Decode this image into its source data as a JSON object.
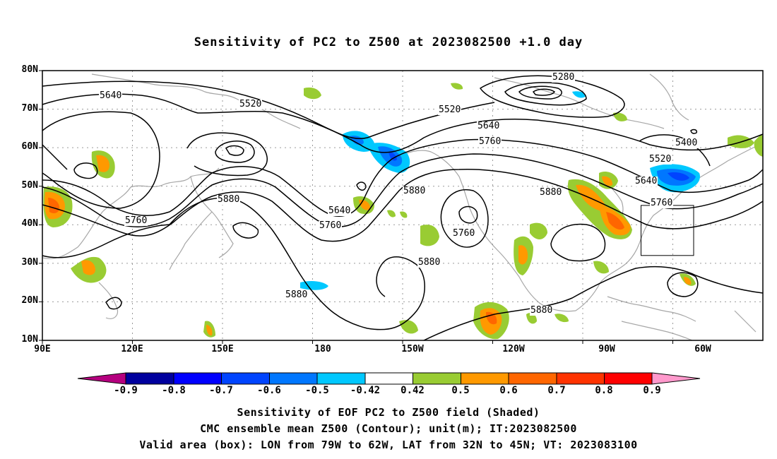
{
  "title": "Sensitivity of PC2 to Z500 at 2023082500 +1.0 day",
  "map": {
    "lat_labels": [
      "80N",
      "70N",
      "60N",
      "50N",
      "40N",
      "30N",
      "20N",
      "10N"
    ],
    "lon_labels": [
      "90E",
      "120E",
      "150E",
      "180",
      "150W",
      "120W",
      "90W",
      "60W"
    ],
    "contour_labels": [
      "5640",
      "5520",
      "5280",
      "5520",
      "5640",
      "5760",
      "5400",
      "5520",
      "5640",
      "5760",
      "5880",
      "5640",
      "5760",
      "5880",
      "5880",
      "5760",
      "5760",
      "5880",
      "5880",
      "5880"
    ],
    "valid_box": {
      "lon_from": "79W",
      "lon_to": "62W",
      "lat_from": "32N",
      "lat_to": "45N"
    }
  },
  "colorbar": {
    "labels": [
      "-0.9",
      "-0.8",
      "-0.7",
      "-0.6",
      "-0.5",
      "-0.42",
      "0.42",
      "0.5",
      "0.6",
      "0.7",
      "0.8",
      "0.9"
    ],
    "colors": [
      "#b5007f",
      "#00009e",
      "#0000ff",
      "#0044ff",
      "#0077ff",
      "#00c8ff",
      "#ffffff",
      "#99cc33",
      "#ff9900",
      "#ff6600",
      "#ff3300",
      "#ff0000",
      "#ff99cc"
    ]
  },
  "captions": [
    "Sensitivity of EOF PC2 to Z500 field (Shaded)",
    "CMC ensemble mean Z500 (Contour); unit(m); IT:2023082500",
    "Valid area (box): LON from 79W to 62W, LAT from 32N to 45N; VT: 2023083100"
  ]
}
